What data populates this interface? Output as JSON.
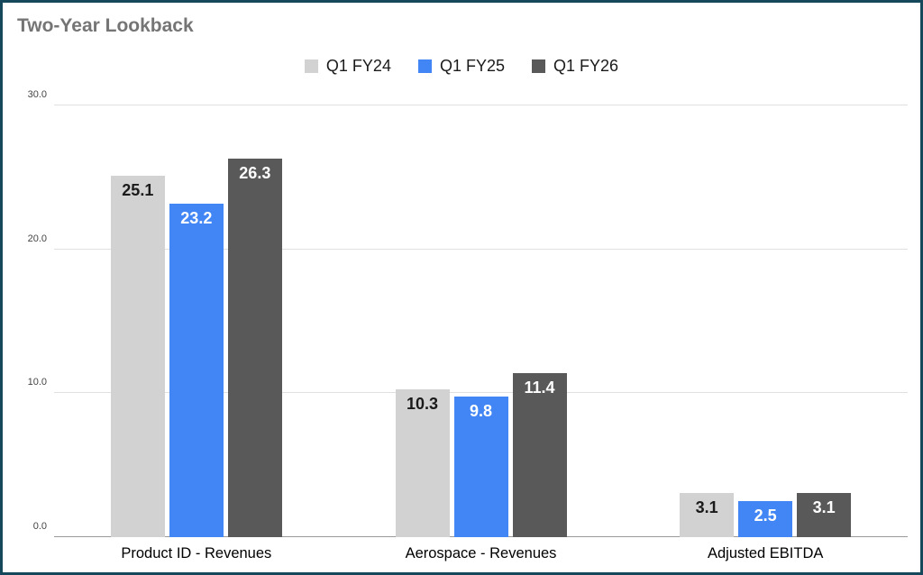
{
  "chart_data": {
    "type": "bar",
    "title": "Two-Year Lookback",
    "categories": [
      "Product ID - Revenues",
      "Aerospace - Revenues",
      "Adjusted EBITDA"
    ],
    "series": [
      {
        "name": "Q1 FY24",
        "color": "#d2d2d2",
        "label_color": "#1a1a1a",
        "values": [
          25.1,
          10.3,
          3.1
        ]
      },
      {
        "name": "Q1 FY25",
        "color": "#4285f4",
        "label_color": "#ffffff",
        "values": [
          23.2,
          9.8,
          2.5
        ]
      },
      {
        "name": "Q1 FY26",
        "color": "#595959",
        "label_color": "#ffffff",
        "values": [
          26.3,
          11.4,
          3.1
        ]
      }
    ],
    "ylim": [
      0,
      30
    ],
    "yticks": [
      0,
      10,
      20,
      30
    ],
    "ytick_labels": [
      "0.0",
      "10.0",
      "20.0",
      "30.0"
    ],
    "grid": true,
    "legend_position": "top",
    "value_labels": "one_decimal_inside_top"
  },
  "style": {
    "frame_border_color": "#16485c",
    "title_color": "#757575",
    "grid_color": "#e0e0e0",
    "baseline_color": "#9a9a9a",
    "tick_label_color": "#444444",
    "category_label_color": "#000000",
    "legend_text_color": "#1a1a1a"
  }
}
